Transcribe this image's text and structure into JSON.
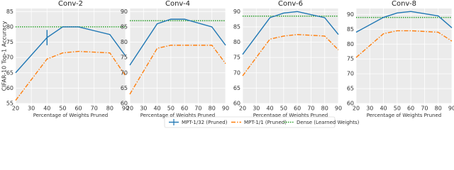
{
  "chart_data": [
    {
      "type": "line",
      "title": "Conv-2",
      "ylabel": "CIFAR-10 Top-1 Accuracy",
      "xlabel": "Percentage of Weights Pruned",
      "x": [
        20,
        40,
        50,
        60,
        80,
        90
      ],
      "xlim": [
        20,
        90
      ],
      "xticks": [
        20,
        30,
        40,
        50,
        60,
        70,
        80,
        90
      ],
      "ylim": [
        55,
        86
      ],
      "yticks": [
        55,
        60,
        65,
        70,
        75,
        80,
        85
      ],
      "grid": true,
      "series": [
        {
          "name": "MPT-1/32 (Pruned)",
          "color": "#1f77b4",
          "linestyle": "solid",
          "values": [
            65,
            76.5,
            80,
            80,
            77.5,
            70.5
          ],
          "errors": [
            null,
            2.5,
            null,
            null,
            null,
            null
          ]
        },
        {
          "name": "MPT-1/1 (Pruned)",
          "color": "#ff7f0e",
          "linestyle": "dashdot",
          "values": [
            56,
            69.5,
            71.5,
            72,
            71.5,
            64
          ]
        }
      ],
      "hline": {
        "name": "Dense (Learned Weights)",
        "color": "#2ca02c",
        "linestyle": "dotted",
        "value": 80
      }
    },
    {
      "type": "line",
      "title": "Conv-4",
      "xlabel": "Percentage of Weights Pruned",
      "x": [
        20,
        40,
        50,
        60,
        80,
        90
      ],
      "xlim": [
        20,
        90
      ],
      "xticks": [
        20,
        30,
        40,
        50,
        60,
        70,
        80,
        90
      ],
      "ylim": [
        60,
        91
      ],
      "yticks": [
        60,
        65,
        70,
        75,
        80,
        85,
        90
      ],
      "grid": true,
      "series": [
        {
          "name": "MPT-1/32 (Pruned)",
          "color": "#1f77b4",
          "linestyle": "solid",
          "values": [
            72.5,
            86,
            87.5,
            87.5,
            85,
            79
          ]
        },
        {
          "name": "MPT-1/1 (Pruned)",
          "color": "#ff7f0e",
          "linestyle": "dashdot",
          "values": [
            63,
            78,
            79,
            79,
            79,
            73
          ]
        }
      ],
      "hline": {
        "name": "Dense (Learned Weights)",
        "color": "#2ca02c",
        "linestyle": "dotted",
        "value": 87
      }
    },
    {
      "type": "line",
      "title": "Conv-6",
      "xlabel": "Percentage of Weights Pruned",
      "x": [
        20,
        40,
        50,
        60,
        80,
        90
      ],
      "xlim": [
        20,
        90
      ],
      "xticks": [
        20,
        30,
        40,
        50,
        60,
        70,
        80,
        90
      ],
      "ylim": [
        60,
        91
      ],
      "yticks": [
        60,
        65,
        70,
        75,
        80,
        85,
        90
      ],
      "grid": true,
      "series": [
        {
          "name": "MPT-1/32 (Pruned)",
          "color": "#1f77b4",
          "linestyle": "solid",
          "values": [
            76,
            88,
            89.5,
            90,
            88,
            82.5
          ]
        },
        {
          "name": "MPT-1/1 (Pruned)",
          "color": "#ff7f0e",
          "linestyle": "dashdot",
          "values": [
            69,
            81,
            82,
            82.5,
            82,
            77.5
          ]
        }
      ],
      "hline": {
        "name": "Dense (Learned Weights)",
        "color": "#2ca02c",
        "linestyle": "dotted",
        "value": 88.5
      }
    },
    {
      "type": "line",
      "title": "Conv-8",
      "xlabel": "Percentage of Weights Pruned",
      "x": [
        20,
        40,
        50,
        60,
        80,
        90
      ],
      "xlim": [
        20,
        90
      ],
      "xticks": [
        20,
        30,
        40,
        50,
        60,
        70,
        80,
        90
      ],
      "ylim": [
        60,
        92
      ],
      "yticks": [
        60,
        65,
        70,
        75,
        80,
        85,
        90
      ],
      "grid": true,
      "series": [
        {
          "name": "MPT-1/32 (Pruned)",
          "color": "#1f77b4",
          "linestyle": "solid",
          "values": [
            84,
            89,
            90.5,
            91,
            89.5,
            85.5
          ]
        },
        {
          "name": "MPT-1/1 (Pruned)",
          "color": "#ff7f0e",
          "linestyle": "dashdot",
          "values": [
            75.5,
            83.5,
            84.5,
            84.5,
            84,
            81
          ]
        }
      ],
      "hline": {
        "name": "Dense (Learned Weights)",
        "color": "#2ca02c",
        "linestyle": "dotted",
        "value": 89
      }
    }
  ]
}
